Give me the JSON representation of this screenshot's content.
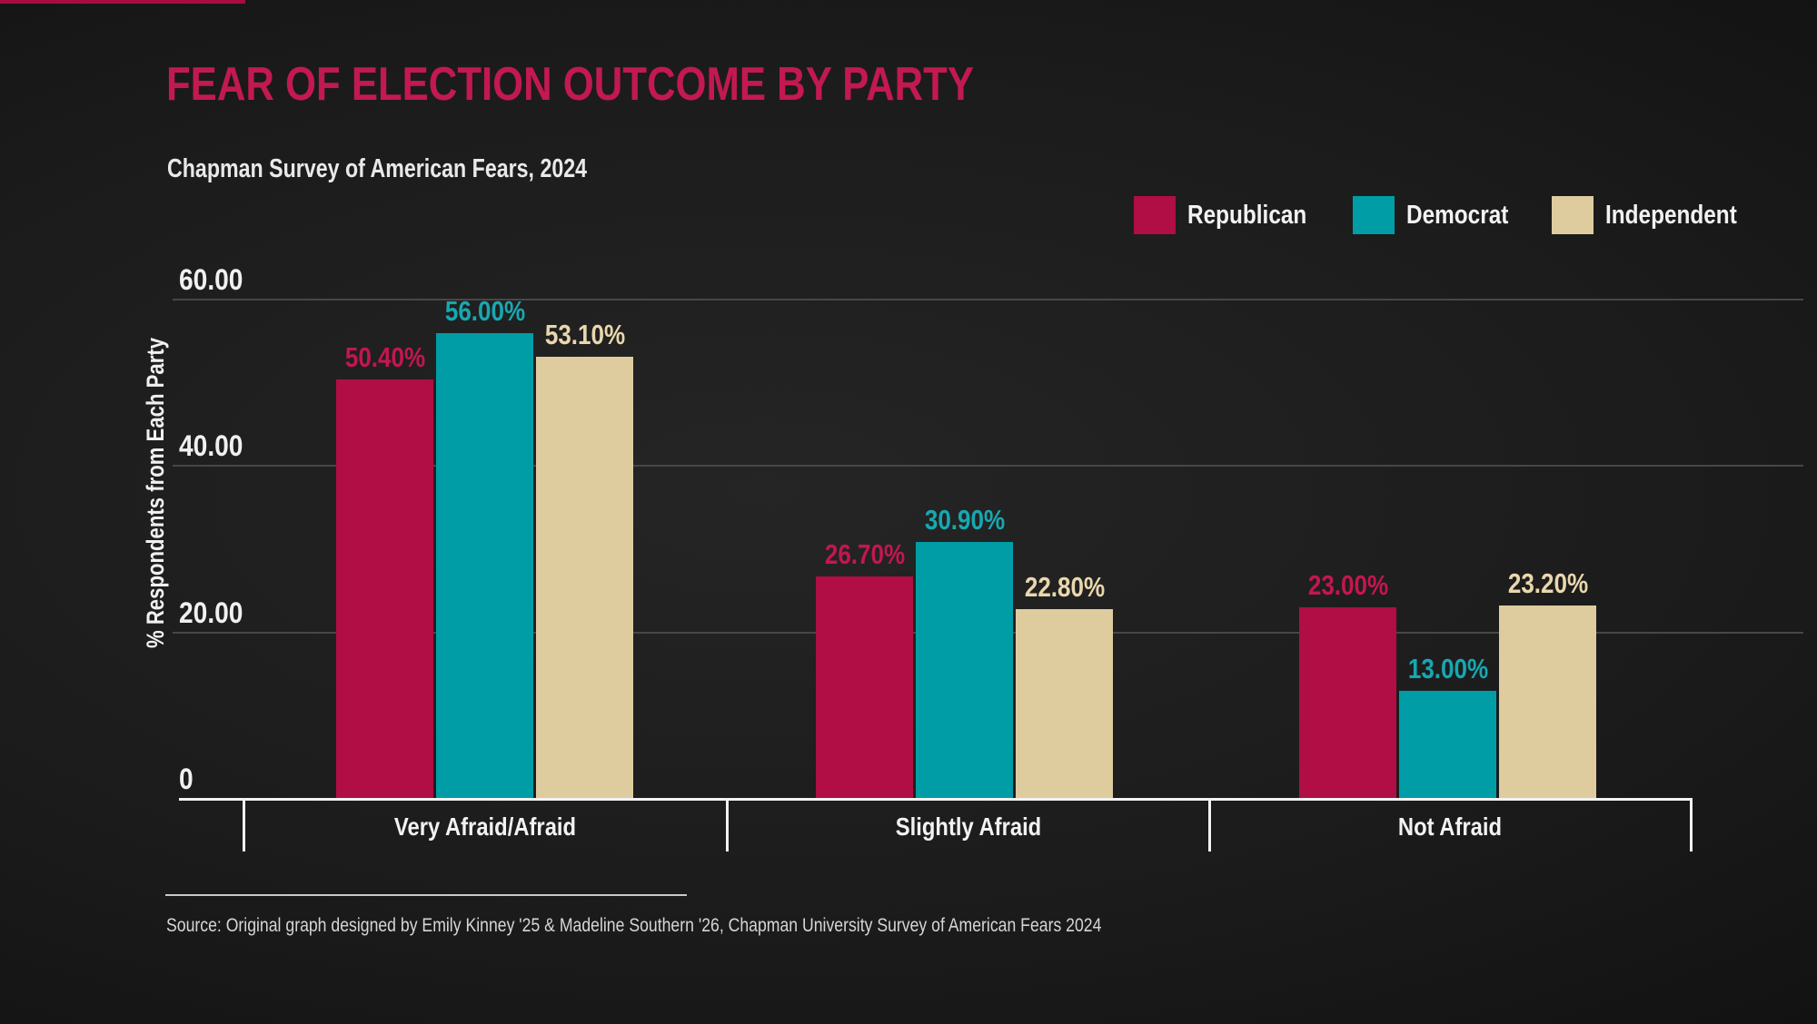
{
  "page": {
    "title": "FEAR OF ELECTION OUTCOME BY PARTY",
    "subtitle": "Chapman Survey of American Fears, 2024",
    "source": "Source: Original graph designed by Emily Kinney '25 & Madeline Southern '26, Chapman University Survey of American Fears 2024"
  },
  "colors": {
    "background_center": "#252525",
    "background_edge": "#090909",
    "title": "#C21950",
    "subtitle": "#E9E9E9",
    "axis": "#F2F2F2",
    "gridline": "#474747",
    "top_accent_strip": "#A80D40",
    "republican": "#B00E45",
    "democrat": "#009DA7",
    "independent": "#DFCC9E"
  },
  "legend": {
    "items": [
      {
        "label": "Republican",
        "color": "#B00E45"
      },
      {
        "label": "Democrat",
        "color": "#009DA7"
      },
      {
        "label": "Independent",
        "color": "#DFCC9E"
      }
    ]
  },
  "chart_data": {
    "type": "bar",
    "title": "FEAR OF ELECTION OUTCOME BY PARTY",
    "subtitle": "Chapman Survey of American Fears, 2024",
    "categories": [
      "Very Afraid/Afraid",
      "Slightly Afraid",
      "Not Afraid"
    ],
    "series": [
      {
        "name": "Republican",
        "color": "#B00E45",
        "label_color": "#C4164F",
        "values": [
          50.4,
          26.7,
          23.0
        ],
        "labels": [
          "50.40%",
          "26.70%",
          "23.00%"
        ]
      },
      {
        "name": "Democrat",
        "color": "#009DA7",
        "label_color": "#16A8B1",
        "values": [
          56.0,
          30.9,
          13.0
        ],
        "labels": [
          "56.00%",
          "30.90%",
          "13.00%"
        ]
      },
      {
        "name": "Independent",
        "color": "#DFCC9E",
        "label_color": "#E9D7AD",
        "values": [
          53.1,
          22.8,
          23.2
        ],
        "labels": [
          "53.10%",
          "22.80%",
          "23.20%"
        ]
      }
    ],
    "xlabel": "",
    "ylabel": "% Respondents from Each Party",
    "yticks": [
      {
        "value": 60,
        "label": "60.00"
      },
      {
        "value": 40,
        "label": "40.00"
      },
      {
        "value": 20,
        "label": "20.00"
      },
      {
        "value": 0,
        "label": "0"
      }
    ],
    "ylim": [
      0,
      60
    ],
    "grid": true,
    "legend_position": "top-right"
  }
}
